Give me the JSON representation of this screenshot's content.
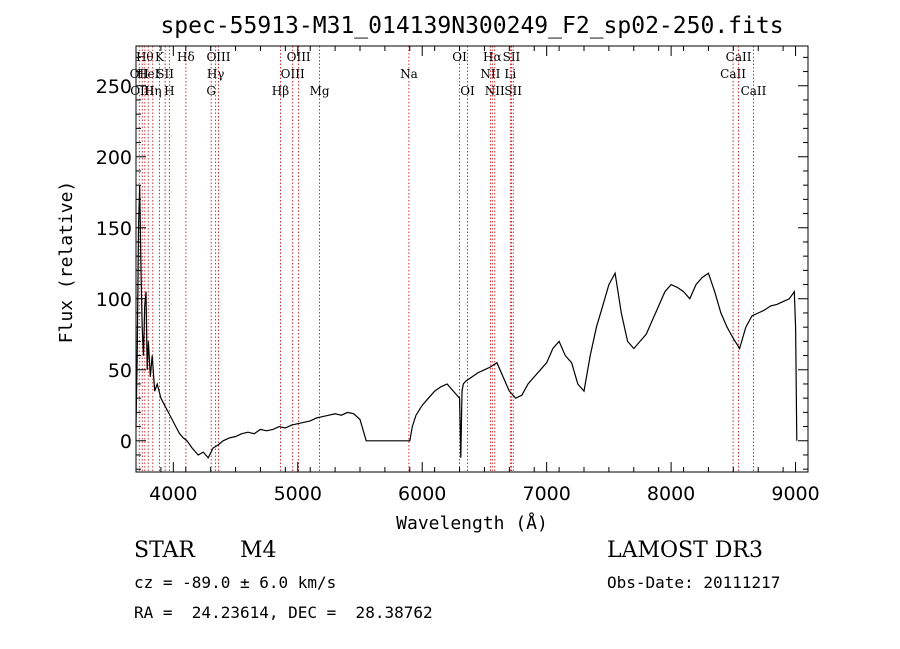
{
  "chart_data": {
    "type": "line",
    "title": "spec-55913-M31_014139N300249_F2_sp02-250.fits",
    "xlabel": "Wavelength (Å)",
    "ylabel": "Flux (relative)",
    "xlim": [
      3700,
      9100
    ],
    "ylim": [
      -22,
      278
    ],
    "xticks": [
      4000,
      5000,
      6000,
      7000,
      8000,
      9000
    ],
    "yticks": [
      0,
      50,
      100,
      150,
      200,
      250
    ],
    "series": [
      {
        "x": [
          3700,
          3710,
          3720,
          3730,
          3740,
          3750,
          3760,
          3770,
          3780,
          3790,
          3800,
          3815,
          3830,
          3850,
          3870,
          3900,
          3930,
          3960,
          3990,
          4020,
          4050,
          4080,
          4110,
          4150,
          4200,
          4240,
          4280,
          4320,
          4360,
          4400,
          4450,
          4500,
          4550,
          4600,
          4650,
          4700,
          4750,
          4800,
          4850,
          4900,
          4950,
          5000,
          5050,
          5100,
          5150,
          5200,
          5250,
          5300,
          5350,
          5400,
          5450,
          5500,
          5550,
          5600,
          5700,
          5800,
          5900,
          5920,
          5950,
          6000,
          6050,
          6100,
          6150,
          6200,
          6250,
          6300,
          6310,
          6320,
          6330,
          6350,
          6400,
          6450,
          6500,
          6550,
          6600,
          6650,
          6700,
          6750,
          6800,
          6850,
          6900,
          6950,
          7000,
          7050,
          7100,
          7150,
          7200,
          7250,
          7300,
          7350,
          7400,
          7450,
          7500,
          7550,
          7600,
          7650,
          7700,
          7750,
          7800,
          7850,
          7900,
          7950,
          8000,
          8050,
          8100,
          8150,
          8200,
          8250,
          8300,
          8350,
          8400,
          8450,
          8500,
          8550,
          8600,
          8650,
          8700,
          8750,
          8800,
          8850,
          8900,
          8950,
          8990,
          9000,
          9010
        ],
        "y": [
          10,
          60,
          150,
          180,
          120,
          80,
          60,
          95,
          105,
          50,
          70,
          45,
          60,
          35,
          40,
          30,
          25,
          20,
          15,
          10,
          5,
          2,
          0,
          -5,
          -10,
          -8,
          -12,
          -5,
          -3,
          0,
          2,
          3,
          5,
          6,
          5,
          8,
          7,
          8,
          10,
          9,
          11,
          12,
          13,
          14,
          16,
          17,
          18,
          19,
          18,
          20,
          19,
          15,
          0,
          0,
          0,
          0,
          0,
          10,
          18,
          25,
          30,
          35,
          38,
          40,
          35,
          30,
          -12,
          35,
          40,
          42,
          45,
          48,
          50,
          52,
          55,
          45,
          35,
          30,
          32,
          40,
          45,
          50,
          55,
          65,
          70,
          60,
          55,
          40,
          35,
          60,
          80,
          95,
          110,
          118,
          90,
          70,
          65,
          70,
          75,
          85,
          95,
          105,
          110,
          108,
          105,
          100,
          110,
          115,
          118,
          105,
          90,
          80,
          72,
          65,
          80,
          88,
          90,
          92,
          95,
          96,
          98,
          100,
          105,
          80,
          0
        ]
      }
    ],
    "line_markers": [
      {
        "w": 3726,
        "label": "OII",
        "row": 2
      },
      {
        "w": 3750,
        "label": "OIII",
        "row": 3
      },
      {
        "w": 3771,
        "label": "Hθ",
        "row": 1
      },
      {
        "w": 3798,
        "label": "HeI",
        "row": 2
      },
      {
        "w": 3835,
        "label": "Hη",
        "row": 3
      },
      {
        "w": 3889,
        "label": "K",
        "row": 1
      },
      {
        "w": 3934,
        "label": "SII",
        "row": 2
      },
      {
        "w": 3968,
        "label": "H",
        "row": 3
      },
      {
        "w": 4101,
        "label": "Hδ",
        "row": 1
      },
      {
        "w": 4304,
        "label": "G",
        "row": 3
      },
      {
        "w": 4340,
        "label": "Hγ",
        "row": 2
      },
      {
        "w": 4363,
        "label": "OIII",
        "row": 1
      },
      {
        "w": 4861,
        "label": "Hβ",
        "row": 3
      },
      {
        "w": 4959,
        "label": "OIII",
        "row": 2
      },
      {
        "w": 5007,
        "label": "OIII",
        "row": 1
      },
      {
        "w": 5175,
        "label": "Mg",
        "row": 3
      },
      {
        "w": 5893,
        "label": "Na",
        "row": 2
      },
      {
        "w": 6300,
        "label": "OI",
        "row": 1
      },
      {
        "w": 6364,
        "label": "OI",
        "row": 3
      },
      {
        "w": 6548,
        "label": "NII",
        "row": 2
      },
      {
        "w": 6563,
        "label": "Hα",
        "row": 1
      },
      {
        "w": 6583,
        "label": "NII",
        "row": 3
      },
      {
        "w": 6708,
        "label": "Li",
        "row": 2
      },
      {
        "w": 6717,
        "label": "SII",
        "row": 1
      },
      {
        "w": 6731,
        "label": "SII",
        "row": 3
      },
      {
        "w": 8498,
        "label": "CaII",
        "row": 2
      },
      {
        "w": 8542,
        "label": "CaII",
        "row": 1
      },
      {
        "w": 8662,
        "label": "CaII",
        "row": 3
      }
    ]
  },
  "info": {
    "object_class": "STAR",
    "subclass": "M4",
    "survey": "LAMOST DR3",
    "cz": "cz = -89.0 ± 6.0 km/s",
    "obs_date": "Obs-Date: 20111217",
    "radec": "RA =  24.23614, DEC =  28.38762"
  }
}
